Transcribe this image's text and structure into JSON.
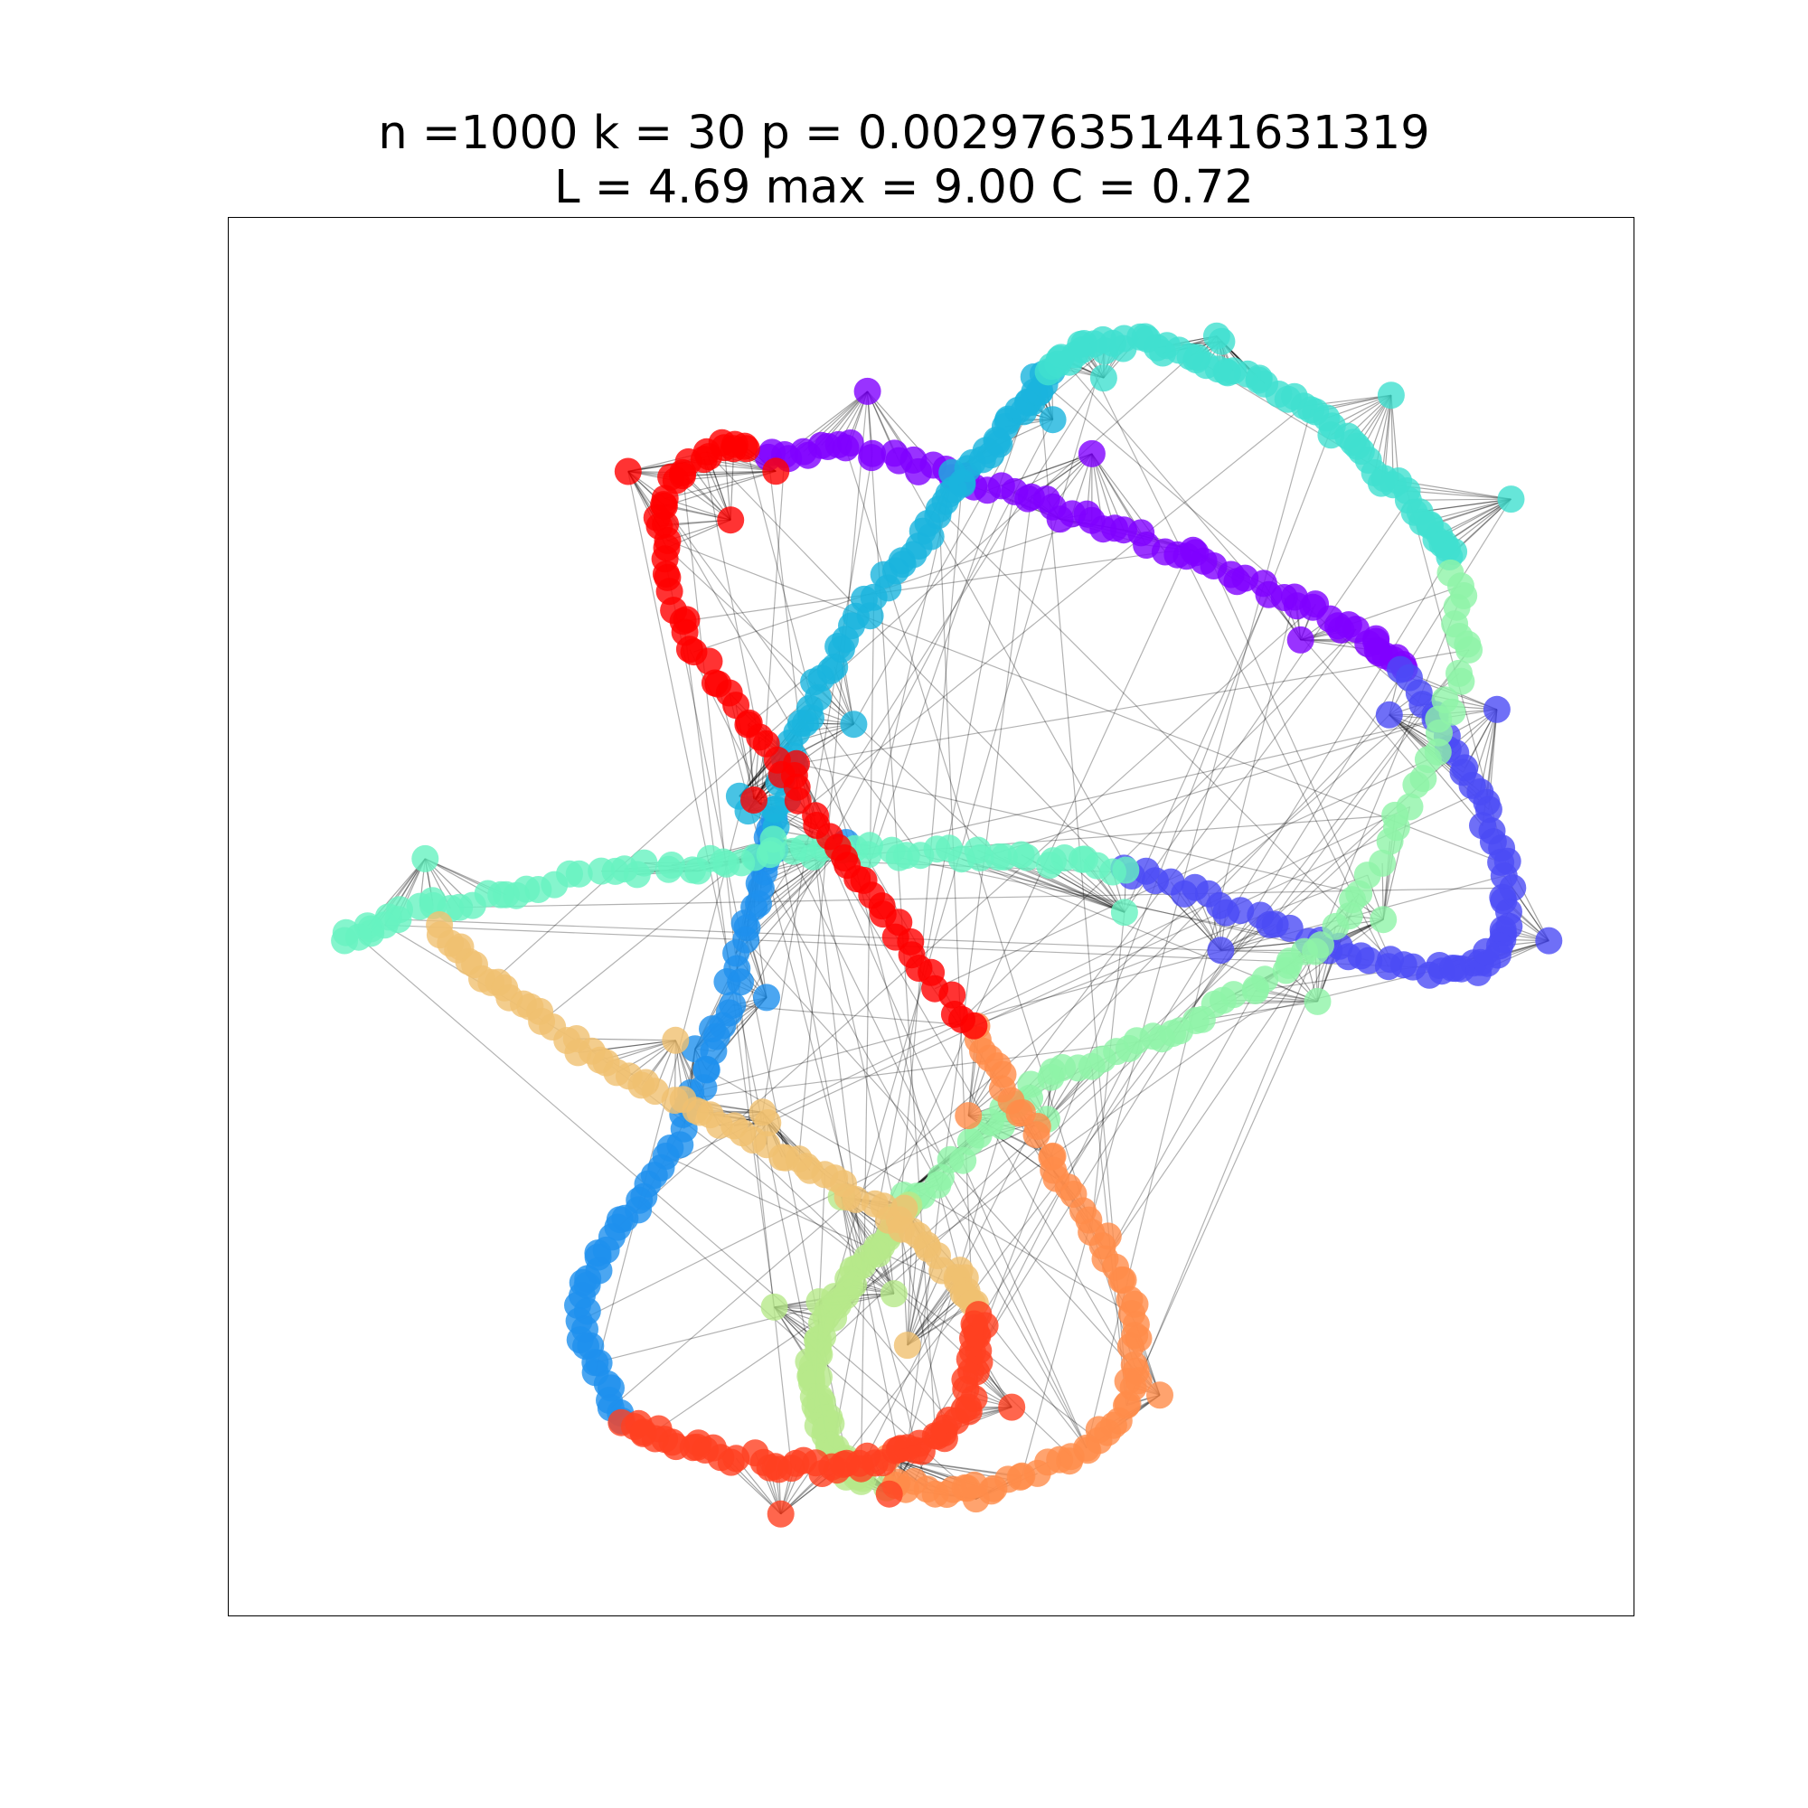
{
  "title": {
    "line1": "n =1000 k = 30 p = 0.002976351441631319",
    "line2": "L = 4.69 max = 9.00 C = 0.72"
  },
  "graph": {
    "n": 1000,
    "k": 30,
    "p": 0.002976351441631319,
    "L": 4.69,
    "max": 9.0,
    "C": 0.72,
    "edge_color": "#000000",
    "node_colormap": "rainbow",
    "node_colors": [
      "#7f00ff",
      "#4b4bf5",
      "#1e90ee",
      "#1ab4dd",
      "#40e0d0",
      "#66f2c1",
      "#8ef4a8",
      "#b6e98a",
      "#f0c070",
      "#ff8c4a",
      "#ff4020",
      "#ff0000"
    ]
  }
}
